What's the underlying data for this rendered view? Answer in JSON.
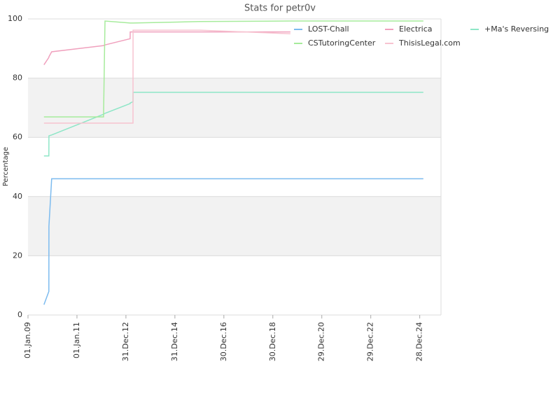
{
  "chart_data": {
    "type": "line",
    "title": "Stats for petr0v",
    "y_label": "Percentage",
    "x": [
      "2009-08-27",
      "2009-11-08",
      "2009-11-09",
      "2009-12-20",
      "2012-02-01",
      "2012-02-23",
      "2013-03-04",
      "2013-03-05",
      "2013-04-15",
      "2013-04-16",
      "2016-01-01",
      "2019-09-18",
      "2025-02-20"
    ],
    "series": [
      {
        "name": "LOST-Chall",
        "color": "#7cbbef",
        "values": [
          3.5,
          8,
          30,
          46,
          46,
          46,
          46,
          46,
          46,
          46,
          46,
          46,
          46
        ]
      },
      {
        "name": "Electrica",
        "color": "#f0a0bd",
        "values": [
          84.5,
          87,
          87.2,
          88.9,
          91,
          91.2,
          93.3,
          95.6,
          95.6,
          95.6,
          95.6,
          95.6,
          null
        ]
      },
      {
        "name": "+Ma's Reversing",
        "color": "#8ee6c7",
        "values": [
          53.7,
          53.7,
          60.5,
          60.8,
          67.8,
          68.1,
          71.4,
          71.6,
          72.0,
          75.2,
          75.2,
          75.2,
          75.2
        ]
      },
      {
        "name": "CSTutoringCenter",
        "color": "#a6eb9b",
        "values": [
          66.9,
          66.9,
          66.9,
          66.9,
          66.9,
          99.3,
          98.6,
          98.6,
          98.6,
          98.6,
          99.1,
          99.3,
          99.3
        ]
      },
      {
        "name": "ThisisLegal.com",
        "color": "#f7c3d0",
        "values": [
          64.8,
          64.8,
          64.8,
          64.8,
          64.8,
          64.8,
          64.8,
          64.8,
          64.8,
          96.2,
          96.2,
          95,
          null
        ]
      }
    ],
    "xlim": [
      "2009-01-01",
      "2025-11-10"
    ],
    "xticks": [
      {
        "value": "2009-01-01",
        "label": "01.Jan.09"
      },
      {
        "value": "2011-01-01",
        "label": "01.Jan.11"
      },
      {
        "value": "2012-12-31",
        "label": "31.Dec.12"
      },
      {
        "value": "2014-12-31",
        "label": "31.Dec.14"
      },
      {
        "value": "2016-12-30",
        "label": "30.Dec.16"
      },
      {
        "value": "2018-12-30",
        "label": "30.Dec.18"
      },
      {
        "value": "2020-12-29",
        "label": "29.Dec.20"
      },
      {
        "value": "2022-12-29",
        "label": "29.Dec.22"
      },
      {
        "value": "2024-12-28",
        "label": "28.Dec.24"
      }
    ],
    "ylim": [
      0,
      100
    ],
    "yticks": [
      0,
      20,
      40,
      60,
      80,
      100
    ],
    "grid": true,
    "legend_position": "top-right"
  }
}
